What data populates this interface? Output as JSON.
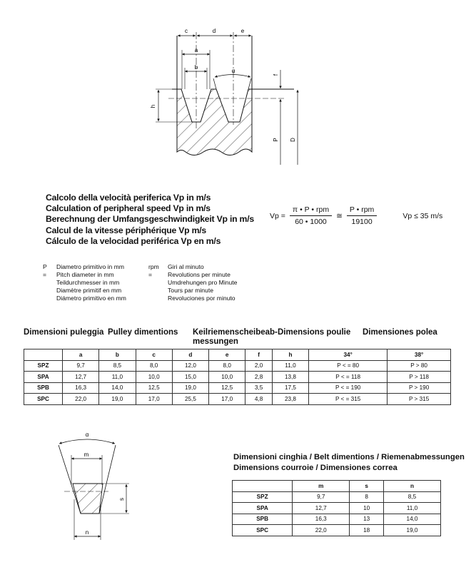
{
  "pulley_diagram": {
    "labels": {
      "c": "c",
      "d": "d",
      "e": "e",
      "a": "a",
      "b": "b",
      "alpha": "α",
      "h": "h",
      "f": "f",
      "P": "P",
      "D": "D"
    }
  },
  "speed_calc": {
    "titles": [
      "Calcolo della velocità periferica Vp in m/s",
      "Calculation of peripheral speed Vp in m/s",
      "Berechnung der Umfangsgeschwindigkeit Vp in m/s",
      "Calcul de la vitesse périphérique Vp m/s",
      "Cálculo de la velocidad periférica Vp en m/s"
    ],
    "formula": {
      "lhs": "Vp =",
      "frac1_num": "π • P • rpm",
      "frac1_den": "60 • 1000",
      "approx": "≅",
      "frac2_num": "P • rpm",
      "frac2_den": "19100",
      "limit": "Vp ≤ 35 m/s"
    }
  },
  "legend": {
    "p_key": "P =",
    "p_lines": [
      "Diametro primitivo in mm",
      "Pitch diameter in mm",
      "Teildurchmesser in mm",
      "Diamètre primitif en mm",
      "Diámetro primitivo en mm"
    ],
    "rpm_key": "rpm =",
    "rpm_lines": [
      "Giri al minuto",
      "Revolutions per minute",
      "Umdrehungen pro Minute",
      "Tours par minute",
      "Revoluciones por minuto"
    ]
  },
  "pulley_table": {
    "headings": [
      "Dimensioni puleggia",
      "Pulley dimentions",
      "Keilriemenscheibeab- messungen",
      "Dimensions poulie",
      "Dimensiones polea"
    ],
    "columns": [
      "",
      "a",
      "b",
      "c",
      "d",
      "e",
      "f",
      "h",
      "34°",
      "38°"
    ],
    "rows": [
      [
        "SPZ",
        "9,7",
        "8,5",
        "8,0",
        "12,0",
        "8,0",
        "2,0",
        "11,0",
        "P < = 80",
        "P > 80"
      ],
      [
        "SPA",
        "12,7",
        "11,0",
        "10,0",
        "15,0",
        "10,0",
        "2,8",
        "13,8",
        "P < = 118",
        "P > 118"
      ],
      [
        "SPB",
        "16,3",
        "14,0",
        "12,5",
        "19,0",
        "12,5",
        "3,5",
        "17,5",
        "P < = 190",
        "P > 190"
      ],
      [
        "SPC",
        "22,0",
        "19,0",
        "17,0",
        "25,5",
        "17,0",
        "4,8",
        "23,8",
        "P < = 315",
        "P > 315"
      ]
    ]
  },
  "belt_diagram": {
    "labels": {
      "alpha": "α",
      "m": "m",
      "s": "s",
      "n": "n"
    }
  },
  "belt_table": {
    "title_line1": "Dimensioni cinghia / Belt dimentions / Riemenabmessungen",
    "title_line2": "Dimensions courroie / Dimensiones correa",
    "columns": [
      "",
      "m",
      "s",
      "n"
    ],
    "rows": [
      [
        "SPZ",
        "9,7",
        "8",
        "8,5"
      ],
      [
        "SPA",
        "12,7",
        "10",
        "11,0"
      ],
      [
        "SPB",
        "16,3",
        "13",
        "14,0"
      ],
      [
        "SPC",
        "22,0",
        "18",
        "19,0"
      ]
    ]
  }
}
